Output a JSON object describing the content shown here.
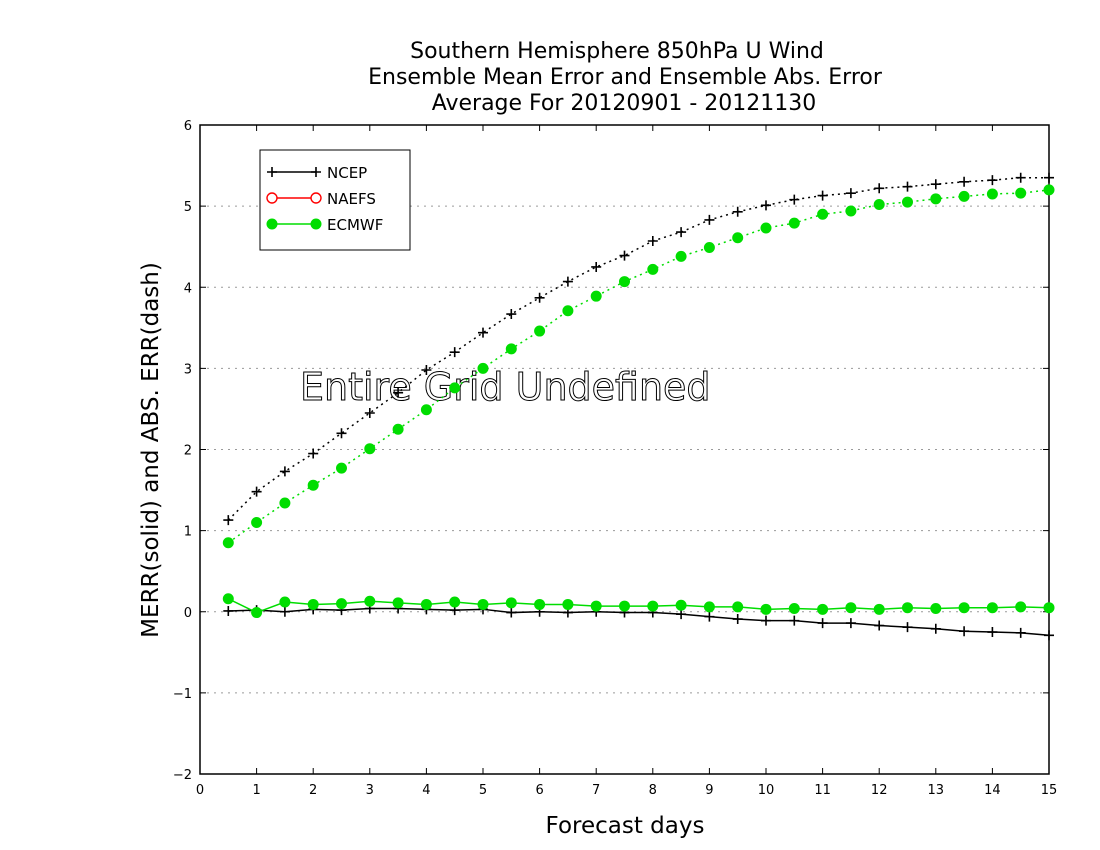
{
  "chart_data": {
    "type": "line",
    "title_lines": [
      "Southern Hemisphere 850hPa U Wind",
      "Ensemble Mean Error and Ensemble Abs. Error",
      "Average For 20120901 - 20121130"
    ],
    "xlabel": "Forecast days",
    "ylabel": "MERR(solid) and ABS. ERR(dash)",
    "xlim": [
      0,
      15
    ],
    "ylim": [
      -2,
      6
    ],
    "x_ticks": [
      "0",
      "1",
      "2",
      "3",
      "4",
      "5",
      "6",
      "7",
      "8",
      "9",
      "10",
      "11",
      "12",
      "13",
      "14",
      "15"
    ],
    "y_ticks": [
      "6",
      "5",
      "4",
      "3",
      "2",
      "1",
      "0",
      "−1",
      "−2"
    ],
    "grid": "horizontal dotted",
    "legend_placement": "top-left",
    "annotation": "Entire Grid Undefined",
    "x": [
      0.5,
      1,
      1.5,
      2,
      2.5,
      3,
      3.5,
      4,
      4.5,
      5,
      5.5,
      6,
      6.5,
      7,
      7.5,
      8,
      8.5,
      9,
      9.5,
      10,
      10.5,
      11,
      11.5,
      12,
      12.5,
      13,
      13.5,
      14,
      14.5,
      15
    ],
    "series": [
      {
        "name": "NCEP",
        "color": "#000000",
        "marker": "plus",
        "merr": [
          0.01,
          0.02,
          0.0,
          0.03,
          0.02,
          0.04,
          0.04,
          0.03,
          0.02,
          0.03,
          -0.01,
          0.0,
          -0.01,
          0.0,
          -0.01,
          -0.01,
          -0.03,
          -0.06,
          -0.09,
          -0.11,
          -0.11,
          -0.14,
          -0.14,
          -0.17,
          -0.19,
          -0.21,
          -0.24,
          -0.25,
          -0.26,
          -0.29
        ],
        "abs_err": [
          1.13,
          1.48,
          1.73,
          1.95,
          2.2,
          2.45,
          2.7,
          2.98,
          3.2,
          3.44,
          3.67,
          3.87,
          4.07,
          4.25,
          4.39,
          4.57,
          4.68,
          4.83,
          4.93,
          5.01,
          5.08,
          5.13,
          5.16,
          5.22,
          5.24,
          5.27,
          5.3,
          5.32,
          5.35,
          5.35
        ]
      },
      {
        "name": "NAEFS",
        "color": "#ff0000",
        "marker": "open-circle",
        "merr": [],
        "abs_err": []
      },
      {
        "name": "ECMWF",
        "color": "#00dd00",
        "marker": "filled-circle",
        "merr": [
          0.16,
          -0.01,
          0.12,
          0.09,
          0.1,
          0.13,
          0.11,
          0.09,
          0.12,
          0.09,
          0.11,
          0.09,
          0.09,
          0.07,
          0.07,
          0.07,
          0.08,
          0.06,
          0.06,
          0.03,
          0.04,
          0.03,
          0.05,
          0.03,
          0.05,
          0.04,
          0.05,
          0.05,
          0.06,
          0.05
        ],
        "abs_err": [
          0.85,
          1.1,
          1.34,
          1.56,
          1.77,
          2.01,
          2.25,
          2.49,
          2.76,
          3.0,
          3.24,
          3.46,
          3.71,
          3.89,
          4.07,
          4.22,
          4.38,
          4.49,
          4.61,
          4.73,
          4.79,
          4.9,
          4.94,
          5.02,
          5.05,
          5.09,
          5.12,
          5.15,
          5.16,
          5.2
        ]
      }
    ]
  }
}
